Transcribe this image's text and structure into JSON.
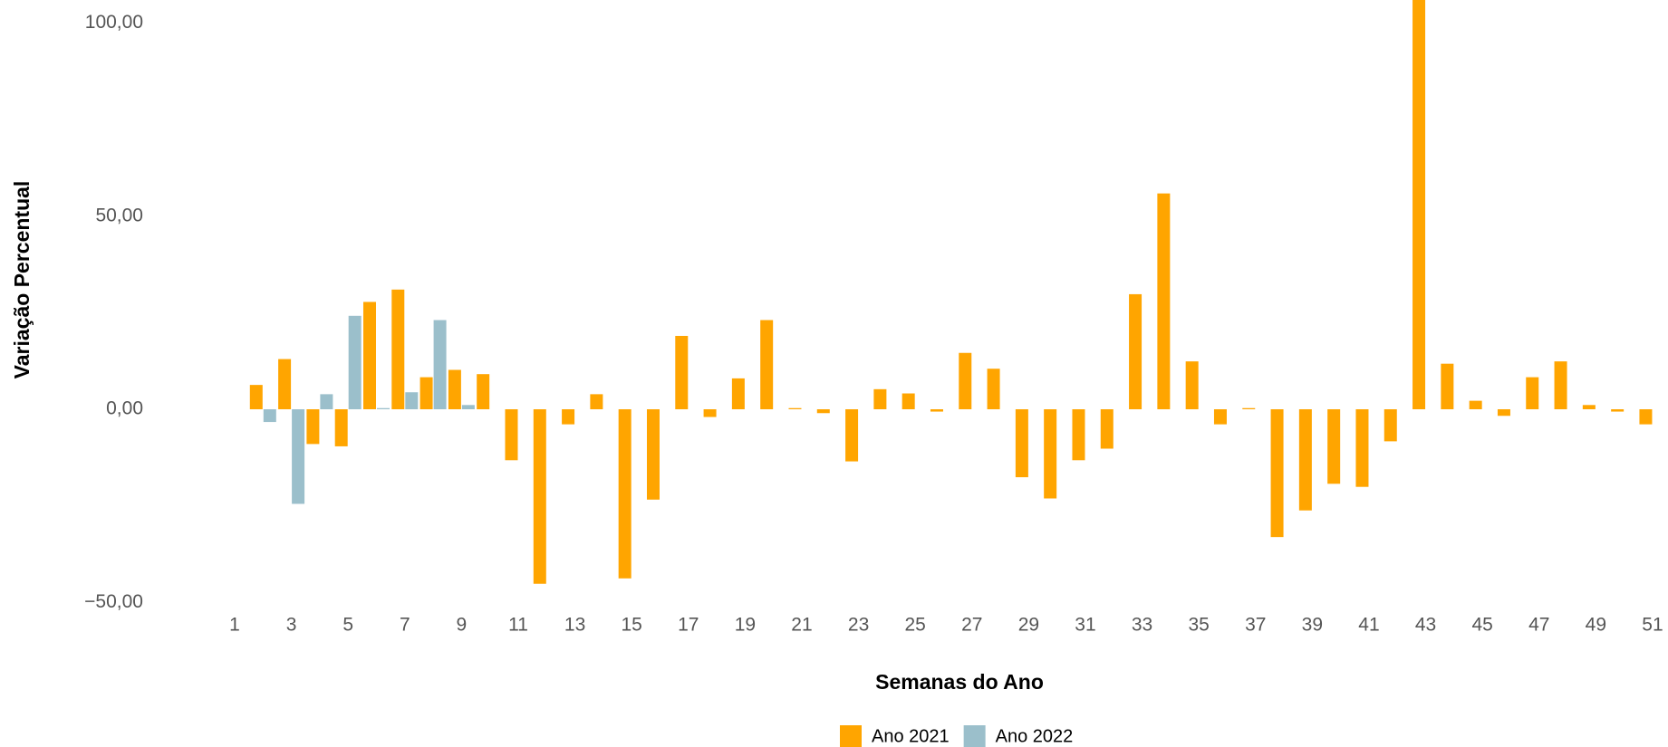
{
  "chart_data": {
    "type": "bar",
    "x_label": "Semanas do Ano",
    "y_label": "Variação Percentual",
    "x": [
      2,
      3,
      4,
      5,
      6,
      7,
      8,
      9,
      10,
      11,
      12,
      13,
      14,
      15,
      16,
      17,
      18,
      19,
      20,
      21,
      22,
      23,
      24,
      25,
      26,
      27,
      28,
      29,
      30,
      31,
      32,
      33,
      34,
      35,
      36,
      37,
      38,
      39,
      40,
      41,
      42,
      43,
      44,
      45,
      46,
      47,
      48,
      49,
      50,
      51
    ],
    "series": [
      {
        "name": "Ano 2021",
        "color": "#ffa500",
        "values": [
          6.3,
          13,
          -9,
          -9.6,
          27.8,
          31,
          8.3,
          10.2,
          9.1,
          -13.2,
          -45.2,
          -3.9,
          3.9,
          -43.8,
          -23.4,
          19,
          -2,
          8,
          23.1,
          0.3,
          -1,
          -13.5,
          5.2,
          4.1,
          -0.6,
          14.6,
          10.5,
          -17.6,
          -23.1,
          -13.2,
          -10.2,
          29.8,
          55.9,
          12.4,
          -3.9,
          0.3,
          -33.1,
          -26.2,
          -19.3,
          -20.1,
          -8.3,
          110,
          11.8,
          2.2,
          -1.7,
          8.3,
          12.4,
          1.1,
          -0.6,
          -3.9
        ]
      },
      {
        "name": "Ano 2022",
        "color": "#9bbfcb",
        "values": [
          -3.3,
          -24.5,
          3.9,
          24.2,
          0.3,
          4.4,
          23.1,
          1.1,
          null,
          null,
          null,
          null,
          null,
          null,
          null,
          null,
          null,
          null,
          null,
          null,
          null,
          null,
          null,
          null,
          null,
          null,
          null,
          null,
          null,
          null,
          null,
          null,
          null,
          null,
          null,
          null,
          null,
          null,
          null,
          null,
          null,
          null,
          null,
          null,
          null,
          null,
          null,
          null,
          null,
          null
        ]
      }
    ],
    "xlim": [
      0.5,
      51.5
    ],
    "xticks": [
      1,
      3,
      5,
      7,
      9,
      11,
      13,
      15,
      17,
      19,
      21,
      23,
      25,
      27,
      29,
      31,
      33,
      35,
      37,
      39,
      41,
      43,
      45,
      47,
      49,
      51
    ],
    "ylim": [
      -53,
      106
    ],
    "yticks": [
      {
        "value": -50,
        "label": "−50,00"
      },
      {
        "value": 0,
        "label": "0,00"
      },
      {
        "value": 50,
        "label": "50,00"
      },
      {
        "value": 100,
        "label": "100,00"
      }
    ],
    "grid": false,
    "legend": "bottom"
  }
}
